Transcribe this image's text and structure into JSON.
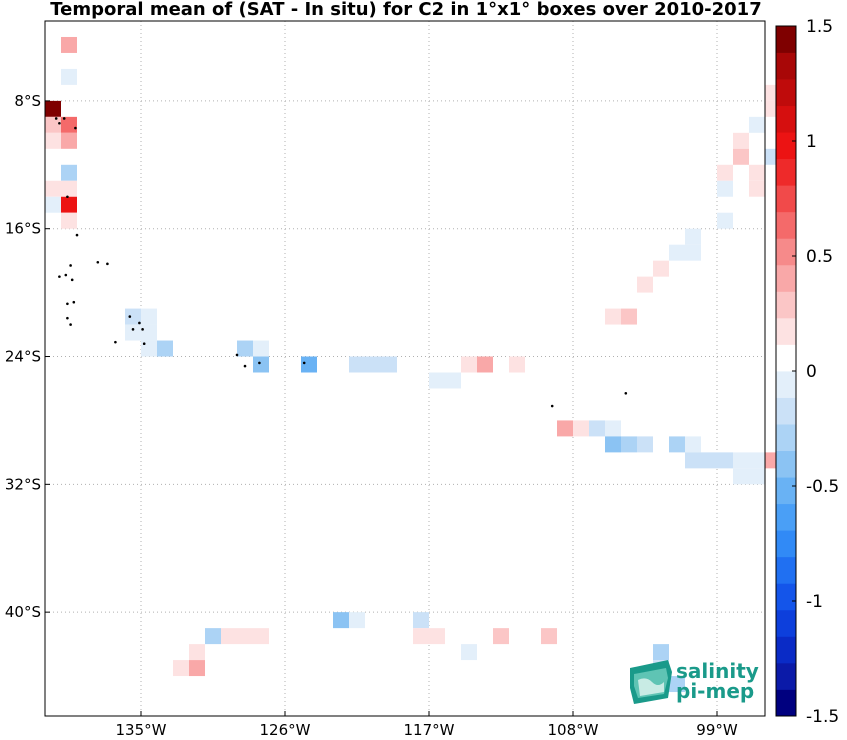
{
  "chart_data": {
    "type": "heatmap",
    "title": "Temporal mean of (SAT - In situ) for C2 in 1°x1° boxes over 2010-2017",
    "x_ticks": [
      "135°W",
      "126°W",
      "117°W",
      "108°W",
      "99°W"
    ],
    "y_ticks": [
      "8°S",
      "16°S",
      "24°S",
      "32°S",
      "40°S"
    ],
    "colorbar": {
      "ticks": [
        "1.5",
        "1",
        "0.5",
        "0",
        "-0.5",
        "-1",
        "-1.5"
      ],
      "range": [
        -1.5,
        1.5
      ]
    },
    "cells": [
      {
        "lon": -139.5,
        "lat": -4.5,
        "value": 0.35
      },
      {
        "lon": -139.5,
        "lat": -6.5,
        "value": -0.1
      },
      {
        "lon": -140.5,
        "lat": -8.5,
        "value": 1.5
      },
      {
        "lon": -140.5,
        "lat": -9.5,
        "value": 0.25
      },
      {
        "lon": -139.5,
        "lat": -9.5,
        "value": 0.6
      },
      {
        "lon": -140.5,
        "lat": -10.5,
        "value": 0.2
      },
      {
        "lon": -139.5,
        "lat": -10.5,
        "value": 0.4
      },
      {
        "lon": -139.5,
        "lat": -12.5,
        "value": -0.25
      },
      {
        "lon": -140.5,
        "lat": -13.5,
        "value": 0.15
      },
      {
        "lon": -139.5,
        "lat": -13.5,
        "value": 0.15
      },
      {
        "lon": -140.5,
        "lat": -14.5,
        "value": -0.1
      },
      {
        "lon": -139.5,
        "lat": -14.5,
        "value": 0.95
      },
      {
        "lon": -139.5,
        "lat": -15.5,
        "value": 0.2
      },
      {
        "lon": -135.5,
        "lat": -21.5,
        "value": -0.2
      },
      {
        "lon": -134.5,
        "lat": -21.5,
        "value": -0.1
      },
      {
        "lon": -135.5,
        "lat": -22.5,
        "value": -0.1
      },
      {
        "lon": -134.5,
        "lat": -22.5,
        "value": -0.1
      },
      {
        "lon": -134.5,
        "lat": -23.5,
        "value": -0.1
      },
      {
        "lon": -133.5,
        "lat": -23.5,
        "value": -0.3
      },
      {
        "lon": -128.5,
        "lat": -23.5,
        "value": -0.25
      },
      {
        "lon": -127.5,
        "lat": -23.5,
        "value": -0.1
      },
      {
        "lon": -127.5,
        "lat": -24.5,
        "value": -0.35
      },
      {
        "lon": -124.5,
        "lat": -24.5,
        "value": -0.5
      },
      {
        "lon": -121.5,
        "lat": -24.5,
        "value": -0.15
      },
      {
        "lon": -120.5,
        "lat": -24.5,
        "value": -0.15
      },
      {
        "lon": -119.5,
        "lat": -24.5,
        "value": -0.15
      },
      {
        "lon": -114.5,
        "lat": -24.5,
        "value": 0.2
      },
      {
        "lon": -113.5,
        "lat": -24.5,
        "value": 0.45
      },
      {
        "lon": -111.5,
        "lat": -24.5,
        "value": 0.2
      },
      {
        "lon": -116.5,
        "lat": -25.5,
        "value": -0.1
      },
      {
        "lon": -115.5,
        "lat": -25.5,
        "value": -0.1
      },
      {
        "lon": -108.5,
        "lat": -28.5,
        "value": 0.45
      },
      {
        "lon": -107.5,
        "lat": -28.5,
        "value": 0.2
      },
      {
        "lon": -106.5,
        "lat": -28.5,
        "value": -0.15
      },
      {
        "lon": -105.5,
        "lat": -28.5,
        "value": -0.1
      },
      {
        "lon": -105.5,
        "lat": -29.5,
        "value": -0.35
      },
      {
        "lon": -104.5,
        "lat": -29.5,
        "value": -0.25
      },
      {
        "lon": -103.5,
        "lat": -29.5,
        "value": -0.15
      },
      {
        "lon": -101.5,
        "lat": -29.5,
        "value": -0.3
      },
      {
        "lon": -100.5,
        "lat": -29.5,
        "value": -0.1
      },
      {
        "lon": -100.5,
        "lat": -30.5,
        "value": -0.15
      },
      {
        "lon": -99.5,
        "lat": -30.5,
        "value": -0.15
      },
      {
        "lon": -98.5,
        "lat": -30.5,
        "value": -0.2
      },
      {
        "lon": -97.5,
        "lat": -30.5,
        "value": -0.1
      },
      {
        "lon": -96.5,
        "lat": -30.5,
        "value": -0.1
      },
      {
        "lon": -95.5,
        "lat": -30.5,
        "value": 0.4
      },
      {
        "lon": -97.5,
        "lat": -31.5,
        "value": -0.1
      },
      {
        "lon": -96.5,
        "lat": -31.5,
        "value": -0.1
      },
      {
        "lon": -95.5,
        "lat": -7.5,
        "value": 0.15
      },
      {
        "lon": -95.5,
        "lat": -8.5,
        "value": 0.15
      },
      {
        "lon": -96.5,
        "lat": -9.5,
        "value": -0.1
      },
      {
        "lon": -97.5,
        "lat": -10.5,
        "value": 0.2
      },
      {
        "lon": -97.5,
        "lat": -11.5,
        "value": 0.3
      },
      {
        "lon": -95.5,
        "lat": -11.5,
        "value": -0.15
      },
      {
        "lon": -98.5,
        "lat": -12.5,
        "value": 0.15
      },
      {
        "lon": -96.5,
        "lat": -12.5,
        "value": 0.2
      },
      {
        "lon": -98.5,
        "lat": -13.5,
        "value": -0.1
      },
      {
        "lon": -96.5,
        "lat": -13.5,
        "value": 0.2
      },
      {
        "lon": -98.5,
        "lat": -15.5,
        "value": -0.1
      },
      {
        "lon": -100.5,
        "lat": -16.5,
        "value": -0.1
      },
      {
        "lon": -100.5,
        "lat": -17.5,
        "value": -0.1
      },
      {
        "lon": -101.5,
        "lat": -17.5,
        "value": -0.1
      },
      {
        "lon": -102.5,
        "lat": -18.5,
        "value": 0.15
      },
      {
        "lon": -103.5,
        "lat": -19.5,
        "value": 0.15
      },
      {
        "lon": -104.5,
        "lat": -21.5,
        "value": 0.25
      },
      {
        "lon": -105.5,
        "lat": -21.5,
        "value": 0.2
      },
      {
        "lon": -122.5,
        "lat": -40.5,
        "value": -0.35
      },
      {
        "lon": -121.5,
        "lat": -40.5,
        "value": -0.1
      },
      {
        "lon": -117.5,
        "lat": -40.5,
        "value": -0.2
      },
      {
        "lon": -130.5,
        "lat": -41.5,
        "value": -0.3
      },
      {
        "lon": -129.5,
        "lat": -41.5,
        "value": 0.15
      },
      {
        "lon": -128.5,
        "lat": -41.5,
        "value": 0.15
      },
      {
        "lon": -127.5,
        "lat": -41.5,
        "value": 0.15
      },
      {
        "lon": -117.5,
        "lat": -41.5,
        "value": 0.15
      },
      {
        "lon": -116.5,
        "lat": -41.5,
        "value": 0.15
      },
      {
        "lon": -112.5,
        "lat": -41.5,
        "value": 0.3
      },
      {
        "lon": -109.5,
        "lat": -41.5,
        "value": 0.3
      },
      {
        "lon": -131.5,
        "lat": -42.5,
        "value": 0.2
      },
      {
        "lon": -114.5,
        "lat": -42.5,
        "value": -0.1
      },
      {
        "lon": -132.5,
        "lat": -43.5,
        "value": 0.2
      },
      {
        "lon": -131.5,
        "lat": -43.5,
        "value": 0.45
      },
      {
        "lon": -102.5,
        "lat": -42.5,
        "value": -0.25
      },
      {
        "lon": -102.5,
        "lat": -43.5,
        "value": -0.15
      },
      {
        "lon": -101.5,
        "lat": -44.5,
        "value": -0.3
      }
    ],
    "land": [
      [
        -140.3,
        -9.1
      ],
      [
        -139.8,
        -9.1
      ],
      [
        -139.1,
        -9.7
      ],
      [
        -140.1,
        -9.4
      ],
      [
        -139.6,
        -14.0
      ],
      [
        -139.0,
        -16.4
      ],
      [
        -139.4,
        -18.3
      ],
      [
        -139.7,
        -18.9
      ],
      [
        -140.1,
        -19.0
      ],
      [
        -139.3,
        -19.2
      ],
      [
        -137.7,
        -18.1
      ],
      [
        -137.1,
        -18.2
      ],
      [
        -139.2,
        -20.6
      ],
      [
        -139.6,
        -20.7
      ],
      [
        -139.6,
        -21.6
      ],
      [
        -139.4,
        -22.0
      ],
      [
        -136.6,
        -23.1
      ],
      [
        -134.8,
        -23.2
      ],
      [
        -135.7,
        -21.5
      ],
      [
        -135.1,
        -21.9
      ],
      [
        -135.5,
        -22.3
      ],
      [
        -134.9,
        -22.3
      ],
      [
        -129.0,
        -23.9
      ],
      [
        -128.5,
        -24.6
      ],
      [
        -127.6,
        -24.4
      ],
      [
        -124.8,
        -24.4
      ],
      [
        -109.3,
        -27.1
      ],
      [
        -104.7,
        -26.3
      ]
    ],
    "colors": {
      "scale": [
        "#00007f",
        "#0b1aa8",
        "#0a2bc6",
        "#0d3fdc",
        "#1455ea",
        "#2070f2",
        "#318af6",
        "#4a9ff6",
        "#69b2f4",
        "#8bc3f3",
        "#acd3f5",
        "#cbe1f7",
        "#e3effa",
        "#ffffff",
        "#fde2e2",
        "#fbc6c6",
        "#f9a8a8",
        "#f68a8a",
        "#f46a6a",
        "#f14a4a",
        "#ee2a2a",
        "#ec1313",
        "#d60f0f",
        "#bf0b0b",
        "#a80707",
        "#7f0000"
      ],
      "land": "#000000",
      "logo_teal": "#1a9a8a"
    },
    "logo": {
      "line1": "salinity",
      "line2": "pi-mep"
    }
  }
}
